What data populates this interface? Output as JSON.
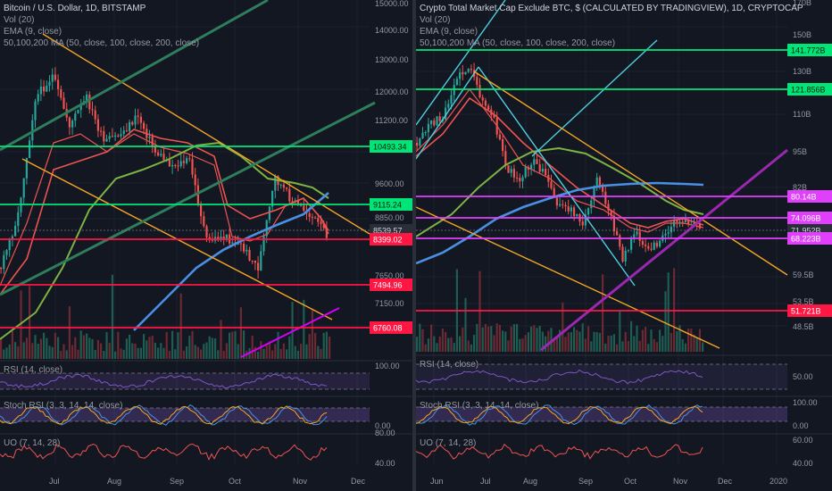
{
  "left": {
    "title": "Bitcoin / U.S. Dollar, 1D, BITSTAMP",
    "legend": [
      "Vol (20)",
      "EMA (9, close)",
      "50,100,200 MA (50, close, 100, close, 200, close)"
    ],
    "price_axis": [
      "15000.00",
      "14000.00",
      "13000.00",
      "12000.00",
      "11200.00",
      "9600.00",
      "8850.00",
      "7650.00",
      "7150.00"
    ],
    "price_labels": [
      {
        "text": "10493.34",
        "color": "#00e676"
      },
      {
        "text": "9115.24",
        "color": "#00e676"
      },
      {
        "text": "8539.57",
        "color": "#2a2e39"
      },
      {
        "text": "8399.02",
        "color": "#ff1744"
      },
      {
        "text": "7494.96",
        "color": "#ff1744"
      },
      {
        "text": "6760.08",
        "color": "#ff1744"
      }
    ],
    "x_labels": [
      "Jul",
      "Aug",
      "Sep",
      "Oct",
      "Nov",
      "Dec"
    ],
    "rsi": {
      "label": "RSI (14, close)",
      "axis": "100.00"
    },
    "stoch": {
      "label": "Stoch RSI (3, 3, 14, 14, close)",
      "axis": "0.00"
    },
    "uo": {
      "label": "UO (7, 14, 28)",
      "axis_top": "80.00",
      "axis_bottom": "40.00"
    }
  },
  "right": {
    "title": "Crypto Total Market Cap Exclude BTC, $ (CALCULATED BY TRADINGVIEW), 1D, CRYPTOCAP",
    "legend": [
      "Vol (20)",
      "EMA (9, close)",
      "50,100,200 MA (50, close, 100, close, 200, close)"
    ],
    "price_axis": [
      "170B",
      "150B",
      "130B",
      "110B",
      "95B",
      "82B",
      "59.5B",
      "53.5B",
      "48.5B"
    ],
    "price_labels": [
      {
        "text": "141.772B",
        "color": "#00e676"
      },
      {
        "text": "121.856B",
        "color": "#00e676"
      },
      {
        "text": "80.14B",
        "color": "#e040fb"
      },
      {
        "text": "74.096B",
        "color": "#e040fb"
      },
      {
        "text": "71.952B",
        "color": "#2a2e39"
      },
      {
        "text": "68.223B",
        "color": "#e040fb"
      },
      {
        "text": "51.721B",
        "color": "#ff1744"
      }
    ],
    "x_labels": [
      "Jun",
      "Jul",
      "Aug",
      "Sep",
      "Oct",
      "Nov",
      "Dec",
      "2020"
    ],
    "rsi": {
      "label": "RSI (14, close)",
      "axis": "50.00"
    },
    "stoch": {
      "label": "Stoch RSI (3, 3, 14, 14, close)",
      "axis_top": "100.00",
      "axis_bottom": "0.00"
    },
    "uo": {
      "label": "UO (7, 14, 28)",
      "axis_top": "60.00",
      "axis_bottom": "40.00"
    }
  },
  "chart_data": [
    {
      "type": "candlestick",
      "title": "Bitcoin / U.S. Dollar, 1D, BITSTAMP",
      "scale": "log",
      "x": [
        "Jul",
        "Aug",
        "Sep",
        "Oct",
        "Nov"
      ],
      "close_approx": [
        11000,
        10400,
        9600,
        8300,
        8540
      ],
      "horizontal_levels": [
        10493.34,
        9115.24,
        8399.02,
        7494.96,
        6760.08
      ],
      "last_price": 8539.57
    },
    {
      "type": "candlestick",
      "title": "Crypto Total Market Cap Exclude BTC, $ (CALCULATED BY TRADINGVIEW), 1D, CRYPTOCAP",
      "scale": "log",
      "x": [
        "Jun",
        "Jul",
        "Aug",
        "Sep",
        "Oct",
        "Nov"
      ],
      "close_approx": [
        100,
        115,
        85,
        72,
        70,
        72
      ],
      "horizontal_levels": [
        141.772,
        121.856,
        80.14,
        74.096,
        68.223,
        51.721
      ],
      "last_price": 71.952,
      "unit": "B"
    }
  ]
}
